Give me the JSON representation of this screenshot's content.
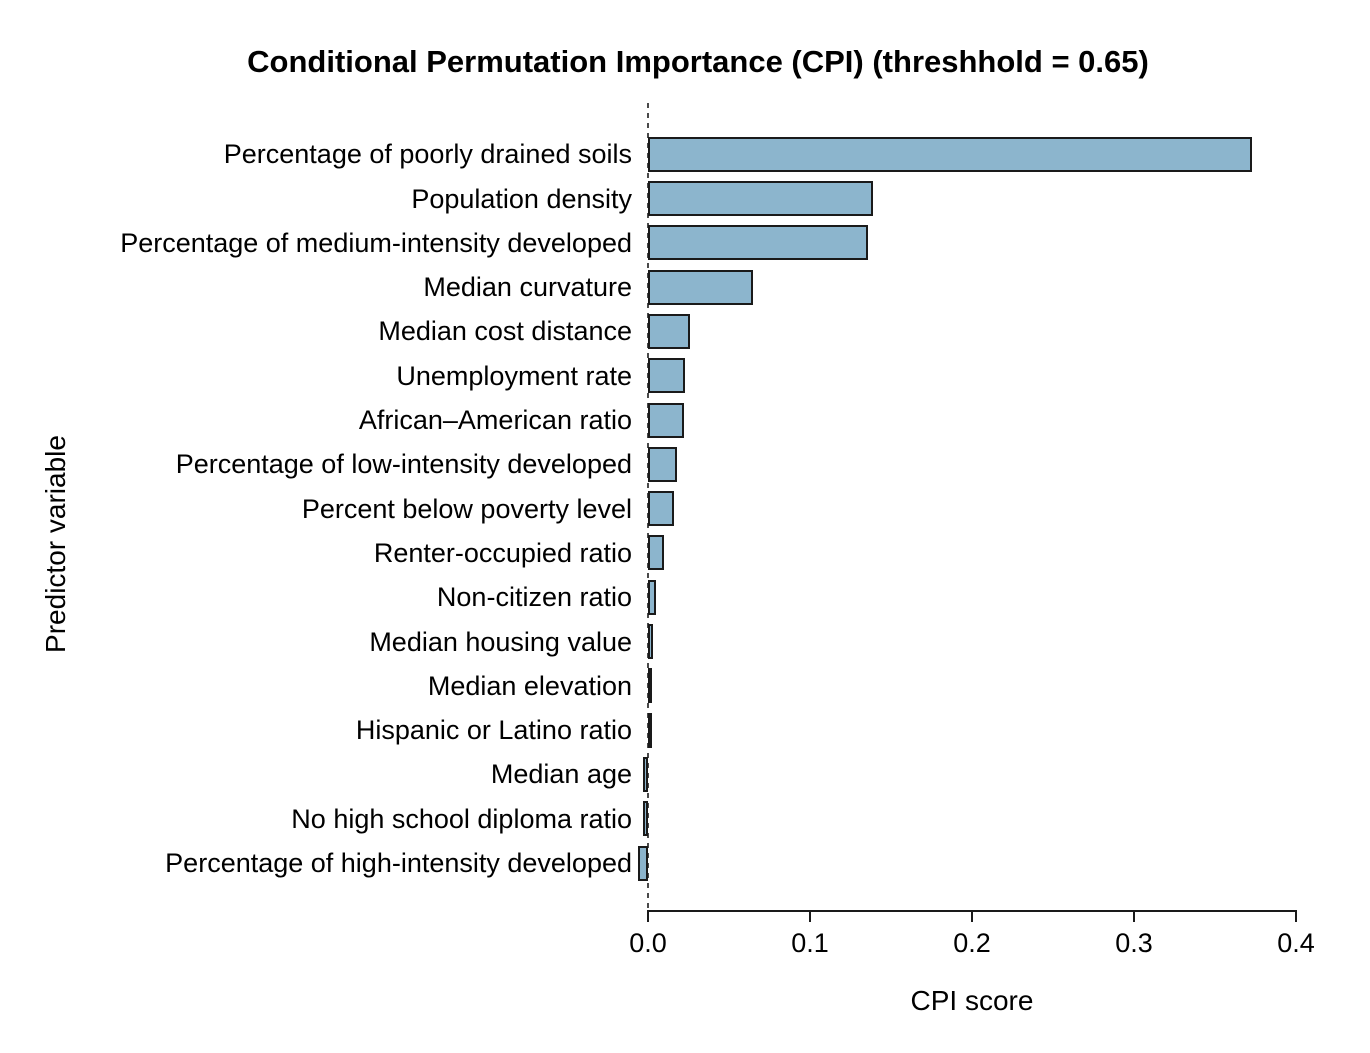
{
  "chart_data": {
    "type": "bar",
    "orientation": "horizontal",
    "title": "Conditional Permutation Importance (CPI) (threshhold = 0.65)",
    "xlabel": "CPI score",
    "ylabel": "Predictor variable",
    "categories": [
      "Percentage of poorly drained soils",
      "Population density",
      "Percentage of medium-intensity developed",
      "Median curvature",
      "Median cost distance",
      "Unemployment rate",
      "African–American ratio",
      "Percentage of low-intensity developed",
      "Percent below poverty level",
      "Renter-occupied ratio",
      "Non-citizen ratio",
      "Median housing value",
      "Median elevation",
      "Hispanic or Latino ratio",
      "Median age",
      "No high school diploma ratio",
      "Percentage of high-intensity developed"
    ],
    "values": [
      0.373,
      0.139,
      0.136,
      0.065,
      0.026,
      0.023,
      0.022,
      0.018,
      0.016,
      0.01,
      0.005,
      0.003,
      0.002,
      0.001,
      -0.003,
      -0.003,
      -0.006
    ],
    "x_ticks": [
      0.0,
      0.1,
      0.2,
      0.3,
      0.4
    ],
    "x_tick_labels": [
      "0.0",
      "0.1",
      "0.2",
      "0.3",
      "0.4"
    ],
    "xlim": [
      0.0,
      0.4
    ],
    "zero_reference_line": "dashed",
    "grid": false,
    "legend": "none",
    "colors": {
      "bar_fill": "#8cb5cd",
      "bar_border": "#1a1a1a",
      "zero_line": "#4a4a4a",
      "axis": "#1a1a1a",
      "text": "#000000",
      "background": "#ffffff"
    }
  }
}
